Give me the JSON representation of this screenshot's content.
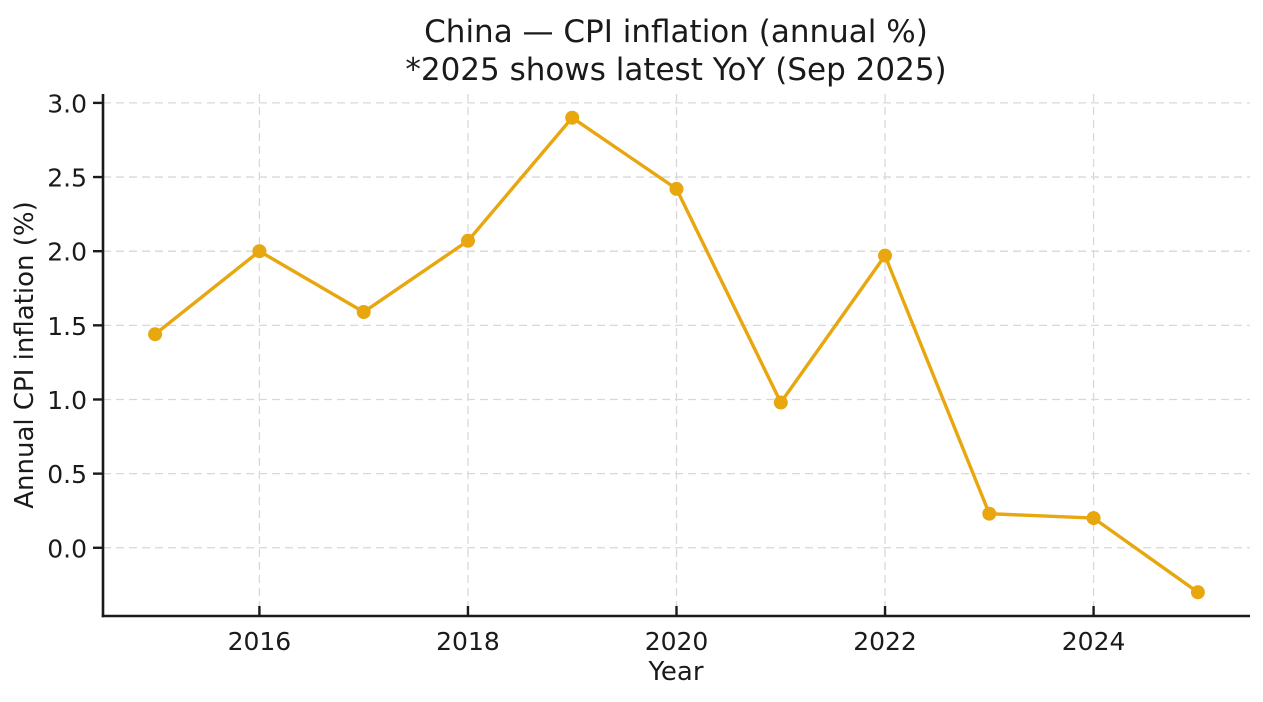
{
  "chart_data": {
    "type": "line",
    "title": "China — CPI inflation (annual %)",
    "subtitle": "*2025 shows latest YoY (Sep 2025)",
    "xlabel": "Year",
    "ylabel": "Annual CPI inflation (%)",
    "x": [
      2015,
      2016,
      2017,
      2018,
      2019,
      2020,
      2021,
      2022,
      2023,
      2024,
      2025
    ],
    "series": [
      {
        "name": "Annual CPI inflation",
        "values": [
          1.44,
          2.0,
          1.59,
          2.07,
          2.9,
          2.42,
          0.98,
          1.97,
          0.23,
          0.2,
          -0.3
        ]
      }
    ],
    "xticks": [
      2016,
      2018,
      2020,
      2022,
      2024
    ],
    "yticks": [
      0.0,
      0.5,
      1.0,
      1.5,
      2.0,
      2.5,
      3.0
    ],
    "xlim": [
      2014.5,
      2025.5
    ],
    "ylim": [
      -0.46,
      3.06
    ],
    "grid": true,
    "legend": "none",
    "colors": {
      "line": "#E8A60F",
      "marker": "#E8A60F",
      "grid": "#d8d8d8",
      "axis": "#1a1a1a",
      "text": "#1a1a1a",
      "background": "#ffffff"
    }
  }
}
